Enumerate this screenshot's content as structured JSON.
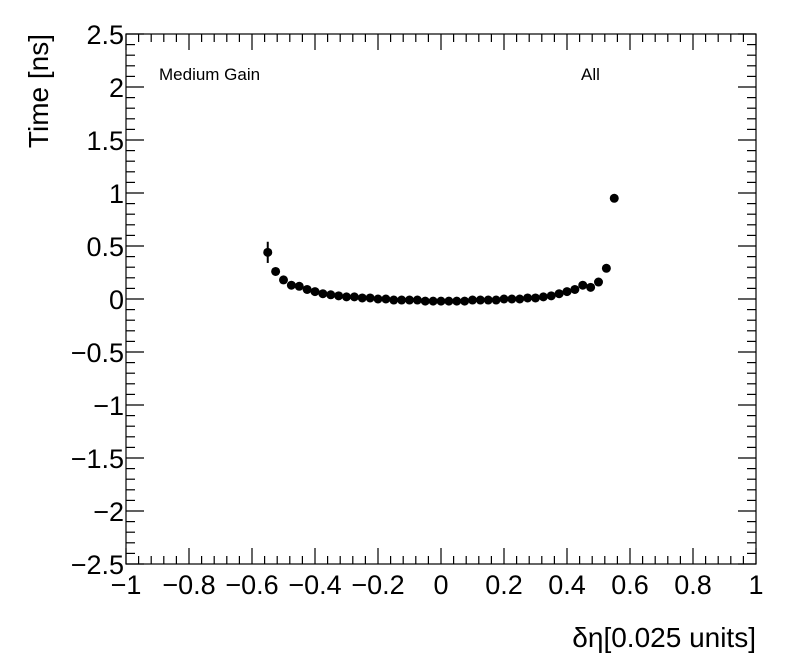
{
  "chart_data": {
    "type": "scatter",
    "x_label": "δη[0.025 units]",
    "y_label": "Time [ns]",
    "annotations": [
      "Medium Gain",
      "All"
    ],
    "x": [
      -0.55,
      -0.525,
      -0.5,
      -0.475,
      -0.45,
      -0.425,
      -0.4,
      -0.375,
      -0.35,
      -0.325,
      -0.3,
      -0.275,
      -0.25,
      -0.225,
      -0.2,
      -0.175,
      -0.15,
      -0.125,
      -0.1,
      -0.075,
      -0.05,
      -0.025,
      0,
      0.025,
      0.05,
      0.075,
      0.1,
      0.125,
      0.15,
      0.175,
      0.2,
      0.225,
      0.25,
      0.275,
      0.3,
      0.325,
      0.35,
      0.375,
      0.4,
      0.425,
      0.45,
      0.475,
      0.5,
      0.525,
      0.55
    ],
    "values": [
      0.44,
      0.26,
      0.18,
      0.13,
      0.12,
      0.09,
      0.07,
      0.05,
      0.04,
      0.03,
      0.02,
      0.02,
      0.01,
      0.01,
      0.0,
      0.0,
      -0.01,
      -0.01,
      -0.01,
      -0.01,
      -0.02,
      -0.02,
      -0.02,
      -0.02,
      -0.02,
      -0.02,
      -0.01,
      -0.01,
      -0.01,
      -0.01,
      0.0,
      0.0,
      0.0,
      0.01,
      0.01,
      0.02,
      0.03,
      0.05,
      0.07,
      0.09,
      0.13,
      0.11,
      0.16,
      0.29,
      0.95
    ],
    "errors": [
      0.1,
      0.02,
      0.01,
      0.01,
      0.01,
      0.01,
      0.01,
      0.01,
      0.01,
      0.01,
      0.01,
      0.01,
      0.01,
      0.01,
      0.01,
      0.01,
      0.01,
      0.01,
      0.01,
      0.01,
      0.01,
      0.01,
      0.01,
      0.01,
      0.01,
      0.01,
      0.01,
      0.01,
      0.01,
      0.01,
      0.01,
      0.01,
      0.01,
      0.01,
      0.01,
      0.01,
      0.01,
      0.01,
      0.01,
      0.01,
      0.01,
      0.01,
      0.01,
      0.02,
      0.02
    ],
    "color": "#000000",
    "xlim": [
      -1,
      1
    ],
    "ylim": [
      -2.5,
      2.5
    ],
    "xticks": [
      {
        "value": -1,
        "label": "−1"
      },
      {
        "value": -0.8,
        "label": "−0.8"
      },
      {
        "value": -0.6,
        "label": "−0.6"
      },
      {
        "value": -0.4,
        "label": "−0.4"
      },
      {
        "value": -0.2,
        "label": "−0.2"
      },
      0,
      0.2,
      0.4,
      0.6,
      0.8,
      1
    ],
    "yticks": [
      {
        "value": -2.5,
        "label": "−2.5"
      },
      {
        "value": -2,
        "label": "−2"
      },
      {
        "value": -1.5,
        "label": "−1.5"
      },
      {
        "value": -1,
        "label": "−1"
      },
      {
        "value": -0.5,
        "label": "−0.5"
      },
      0,
      0.5,
      1,
      1.5,
      2,
      2.5
    ],
    "xminor": 5,
    "yminor": 5,
    "grid": false
  }
}
